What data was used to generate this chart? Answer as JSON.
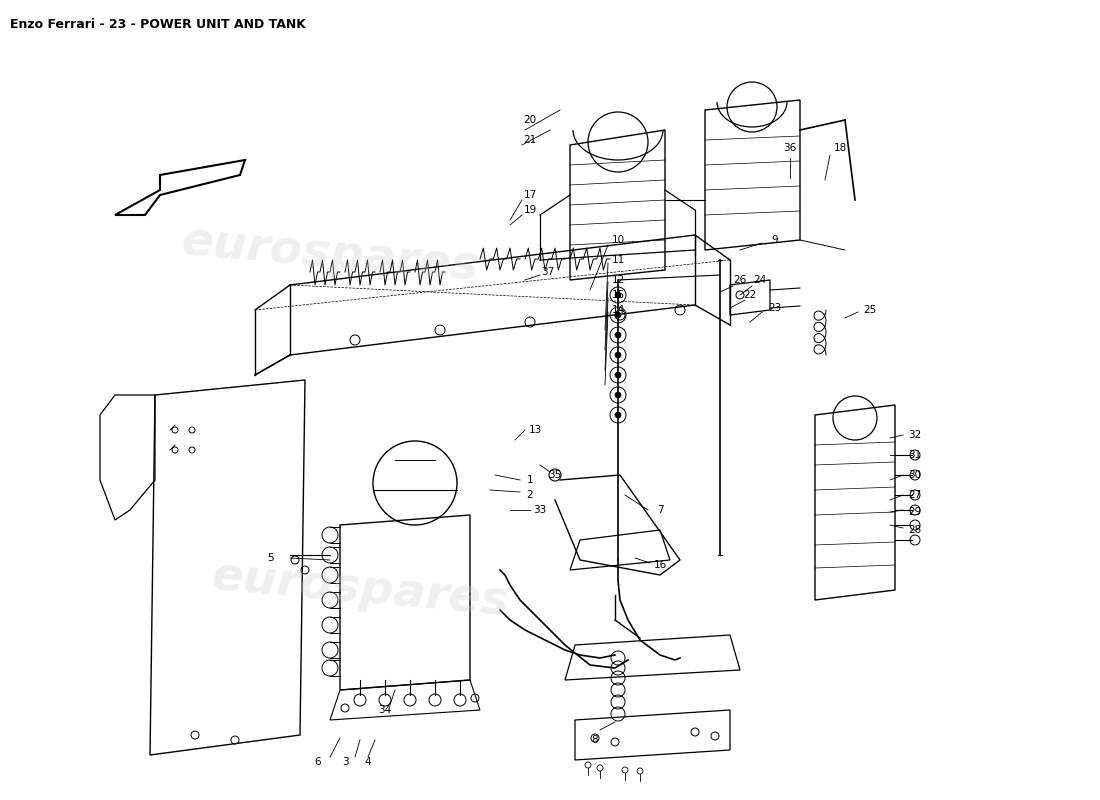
{
  "title": "Enzo Ferrari - 23 - POWER UNIT AND TANK",
  "title_fontsize": 9,
  "title_color": "#000000",
  "background_color": "#ffffff",
  "watermark_text": "eurospares",
  "watermark_color": "#cccccc",
  "watermark_alpha": 0.3,
  "line_color": "#000000",
  "part_labels": [
    [
      1,
      530,
      480,
      520,
      480,
      495,
      475
    ],
    [
      2,
      530,
      495,
      520,
      492,
      490,
      490
    ],
    [
      3,
      345,
      762,
      355,
      757,
      360,
      740
    ],
    [
      4,
      368,
      762,
      368,
      757,
      375,
      740
    ],
    [
      5,
      270,
      558,
      290,
      558,
      330,
      560
    ],
    [
      6,
      318,
      762,
      330,
      757,
      340,
      738
    ],
    [
      7,
      660,
      510,
      648,
      510,
      625,
      495
    ],
    [
      8,
      595,
      740,
      600,
      730,
      615,
      722
    ],
    [
      9,
      775,
      240,
      762,
      243,
      740,
      250
    ],
    [
      10,
      618,
      240,
      608,
      245,
      590,
      290
    ],
    [
      11,
      618,
      260,
      608,
      263,
      605,
      330
    ],
    [
      12,
      618,
      280,
      608,
      282,
      605,
      350
    ],
    [
      13,
      535,
      430,
      525,
      430,
      515,
      440
    ],
    [
      14,
      618,
      310,
      608,
      312,
      605,
      385
    ],
    [
      15,
      618,
      295,
      608,
      298,
      605,
      370
    ],
    [
      16,
      660,
      565,
      650,
      563,
      635,
      558
    ],
    [
      17,
      530,
      195,
      522,
      200,
      510,
      220
    ],
    [
      18,
      840,
      148,
      830,
      155,
      825,
      180
    ],
    [
      19,
      530,
      210,
      522,
      215,
      510,
      225
    ],
    [
      20,
      530,
      120,
      525,
      130,
      560,
      110
    ],
    [
      21,
      530,
      140,
      522,
      145,
      550,
      130
    ],
    [
      22,
      750,
      295,
      745,
      300,
      730,
      308
    ],
    [
      23,
      775,
      308,
      762,
      312,
      750,
      322
    ],
    [
      24,
      760,
      280,
      752,
      286,
      740,
      295
    ],
    [
      25,
      870,
      310,
      858,
      312,
      845,
      318
    ],
    [
      26,
      740,
      280,
      733,
      286,
      720,
      292
    ],
    [
      27,
      915,
      495,
      903,
      495,
      890,
      500
    ],
    [
      28,
      915,
      530,
      903,
      528,
      890,
      525
    ],
    [
      29,
      915,
      512,
      903,
      510,
      890,
      512
    ],
    [
      30,
      915,
      475,
      903,
      475,
      890,
      480
    ],
    [
      31,
      915,
      455,
      903,
      455,
      890,
      455
    ],
    [
      32,
      915,
      435,
      903,
      435,
      890,
      438
    ],
    [
      33,
      540,
      510,
      530,
      510,
      510,
      510
    ],
    [
      34,
      385,
      710,
      390,
      705,
      395,
      690
    ],
    [
      35,
      555,
      475,
      550,
      472,
      540,
      465
    ],
    [
      36,
      790,
      148,
      790,
      158,
      790,
      178
    ],
    [
      37,
      548,
      272,
      540,
      275,
      525,
      280
    ]
  ]
}
